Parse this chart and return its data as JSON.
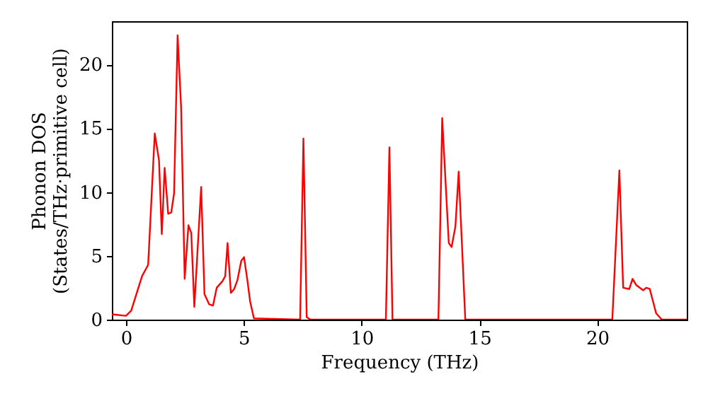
{
  "chart_data": {
    "type": "line",
    "xlabel": "Frequency (THz)",
    "ylabel": "Phonon DOS\n(States/THz·primitive cell)",
    "xlim": [
      -0.6,
      23.8
    ],
    "ylim": [
      0,
      23.4
    ],
    "xticks": [
      0,
      5,
      10,
      15,
      20
    ],
    "yticks": [
      0,
      5,
      10,
      15,
      20
    ],
    "grid": false,
    "line_style": "solid",
    "series": [
      {
        "color": "#ff0000",
        "x": [
          -0.6,
          -0.52,
          0,
          0.22,
          0.68,
          0.94,
          1.22,
          1.4,
          1.52,
          1.64,
          1.79,
          1.92,
          2.04,
          2.19,
          2.34,
          2.49,
          2.65,
          2.77,
          2.9,
          3.19,
          3.33,
          3.53,
          3.69,
          3.85,
          4.09,
          4.21,
          4.31,
          4.45,
          4.59,
          4.73,
          4.89,
          5.01,
          5.15,
          5.27,
          5.43,
          7.39,
          7.53,
          7.67,
          7.83,
          11.03,
          11.18,
          11.31,
          13.26,
          13.42,
          13.7,
          13.82,
          13.98,
          14.12,
          14.4,
          20.64,
          20.94,
          21.1,
          21.36,
          21.5,
          21.66,
          21.95,
          22.08,
          22.23,
          22.5,
          22.74,
          23.8
        ],
        "values": [
          0.4,
          0.4,
          0.3,
          0.7,
          3.4,
          4.3,
          14.6,
          12.5,
          6.7,
          11.9,
          8.3,
          8.4,
          9.9,
          22.3,
          16.6,
          3.2,
          7.4,
          6.8,
          1.0,
          10.4,
          2.0,
          1.2,
          1.1,
          2.5,
          3.0,
          3.4,
          6.0,
          2.1,
          2.4,
          3.1,
          4.6,
          4.9,
          3.1,
          1.4,
          0.1,
          0,
          14.2,
          0.2,
          0,
          0,
          13.5,
          0,
          0,
          15.8,
          6.0,
          5.7,
          7.3,
          11.6,
          0,
          0,
          11.7,
          2.5,
          2.4,
          3.2,
          2.7,
          2.3,
          2.5,
          2.4,
          0.5,
          0,
          0
        ]
      }
    ]
  }
}
